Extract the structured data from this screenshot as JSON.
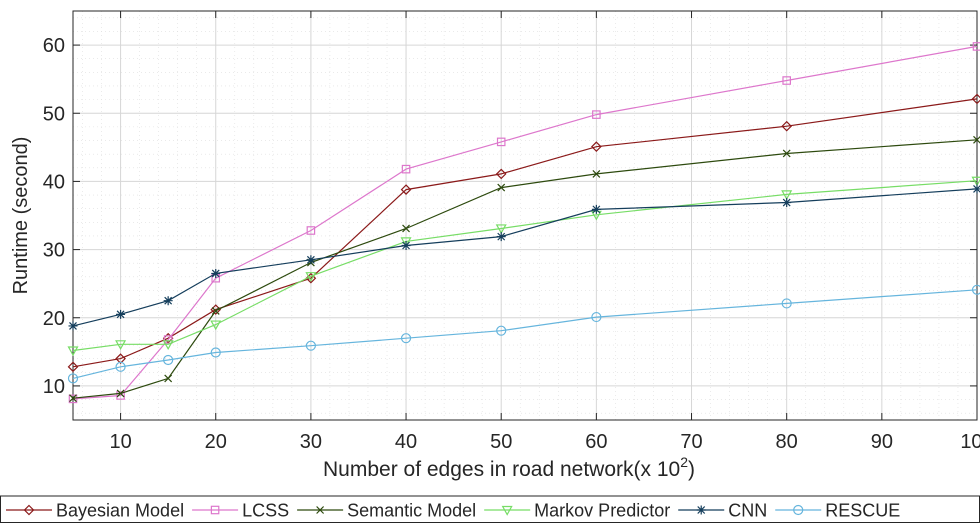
{
  "chart_data": {
    "type": "line",
    "title": "",
    "xlabel": "Number of edges in road network(x 10",
    "xlabel_sup": "2",
    "xlabel_close": ")",
    "ylabel": "Runtime (second)",
    "xlim": [
      5,
      100
    ],
    "ylim": [
      5,
      65
    ],
    "xticks": [
      10,
      20,
      30,
      40,
      50,
      60,
      70,
      80,
      90,
      100
    ],
    "yticks": [
      10,
      20,
      30,
      40,
      50,
      60
    ],
    "grid": true,
    "minor_grid": true,
    "legend_position": "bottom",
    "x": [
      5,
      10,
      15,
      20,
      30,
      40,
      50,
      60,
      80,
      100
    ],
    "series": [
      {
        "name": "Bayesian Model",
        "color": "#8b1a1a",
        "marker": "diamond",
        "values": [
          12.8,
          14,
          17,
          21.2,
          25.8,
          38.8,
          41.1,
          45.1,
          48.1,
          52.1
        ]
      },
      {
        "name": "LCSS",
        "color": "#dd77cc",
        "marker": "square",
        "values": [
          8.1,
          8.6,
          16.8,
          25.8,
          32.8,
          41.8,
          45.8,
          49.8,
          54.8,
          59.8
        ]
      },
      {
        "name": "Semantic Model",
        "color": "#2d4a0e",
        "marker": "x",
        "values": [
          8.2,
          8.9,
          11.1,
          21,
          28.1,
          33.1,
          39.1,
          41.1,
          44.1,
          46.1
        ]
      },
      {
        "name": "Markov Predictor",
        "color": "#77dd66",
        "marker": "triangle-down",
        "values": [
          15.2,
          16.1,
          16.1,
          19,
          26.1,
          31.2,
          33.1,
          35.1,
          38.1,
          40.1
        ]
      },
      {
        "name": "CNN",
        "color": "#153e5c",
        "marker": "asterisk",
        "values": [
          18.8,
          20.5,
          22.5,
          26.5,
          28.5,
          30.6,
          31.9,
          35.9,
          36.9,
          38.9
        ]
      },
      {
        "name": "RESCUE",
        "color": "#66b5dd",
        "marker": "circle",
        "values": [
          11.1,
          12.8,
          13.8,
          14.9,
          15.9,
          17,
          18.1,
          20.1,
          22.1,
          24.1
        ]
      }
    ]
  }
}
